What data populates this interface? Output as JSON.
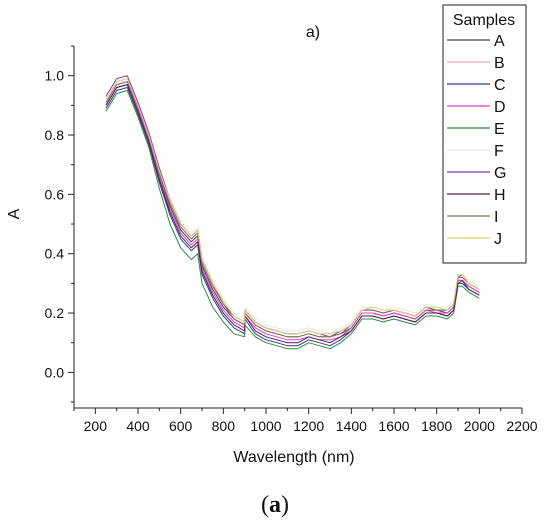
{
  "caption": {
    "open": "(",
    "letter": "a",
    "close": ")"
  },
  "chart_data": {
    "type": "line",
    "title": "a)",
    "xlabel": "Wavelength (nm)",
    "ylabel": "A",
    "xlim": [
      100,
      2200
    ],
    "ylim": [
      -0.12,
      1.1
    ],
    "xticks": [
      200,
      400,
      600,
      800,
      1000,
      1200,
      1400,
      1600,
      1800,
      2000,
      2200
    ],
    "yticks": [
      0.0,
      0.2,
      0.4,
      0.6,
      0.8,
      1.0
    ],
    "grid": false,
    "legend_position": "top-right",
    "legend_title": "Samples",
    "x": [
      250,
      300,
      350,
      400,
      450,
      500,
      550,
      600,
      650,
      680,
      700,
      750,
      800,
      850,
      900,
      901,
      950,
      1000,
      1050,
      1100,
      1150,
      1200,
      1250,
      1300,
      1350,
      1400,
      1450,
      1500,
      1550,
      1600,
      1650,
      1700,
      1750,
      1800,
      1850,
      1880,
      1900,
      1920,
      1950,
      2000
    ],
    "series": [
      {
        "name": "A",
        "color": "#444444",
        "values": [
          0.9,
          0.96,
          0.97,
          0.88,
          0.78,
          0.66,
          0.56,
          0.48,
          0.44,
          0.46,
          0.36,
          0.28,
          0.22,
          0.18,
          0.16,
          0.2,
          0.16,
          0.14,
          0.13,
          0.12,
          0.12,
          0.13,
          0.12,
          0.12,
          0.13,
          0.15,
          0.2,
          0.2,
          0.19,
          0.2,
          0.19,
          0.18,
          0.21,
          0.21,
          0.2,
          0.22,
          0.31,
          0.31,
          0.29,
          0.27
        ]
      },
      {
        "name": "B",
        "color": "#f2a8b6",
        "values": [
          0.92,
          0.98,
          0.99,
          0.9,
          0.8,
          0.68,
          0.58,
          0.5,
          0.46,
          0.48,
          0.38,
          0.3,
          0.24,
          0.19,
          0.17,
          0.21,
          0.17,
          0.15,
          0.14,
          0.13,
          0.13,
          0.14,
          0.13,
          0.12,
          0.14,
          0.16,
          0.21,
          0.21,
          0.2,
          0.21,
          0.2,
          0.19,
          0.22,
          0.21,
          0.21,
          0.23,
          0.32,
          0.32,
          0.3,
          0.28
        ]
      },
      {
        "name": "C",
        "color": "#2f3e8f",
        "values": [
          0.89,
          0.95,
          0.96,
          0.87,
          0.77,
          0.64,
          0.53,
          0.45,
          0.41,
          0.43,
          0.33,
          0.25,
          0.19,
          0.15,
          0.13,
          0.18,
          0.13,
          0.11,
          0.1,
          0.09,
          0.09,
          0.11,
          0.1,
          0.09,
          0.11,
          0.14,
          0.19,
          0.19,
          0.18,
          0.19,
          0.18,
          0.17,
          0.2,
          0.2,
          0.19,
          0.21,
          0.3,
          0.3,
          0.28,
          0.26
        ]
      },
      {
        "name": "D",
        "color": "#e040c8",
        "values": [
          0.91,
          0.97,
          0.98,
          0.89,
          0.79,
          0.66,
          0.55,
          0.47,
          0.43,
          0.45,
          0.35,
          0.27,
          0.21,
          0.17,
          0.15,
          0.19,
          0.15,
          0.13,
          0.12,
          0.11,
          0.11,
          0.12,
          0.11,
          0.11,
          0.12,
          0.15,
          0.2,
          0.2,
          0.19,
          0.2,
          0.19,
          0.18,
          0.21,
          0.2,
          0.2,
          0.22,
          0.31,
          0.31,
          0.29,
          0.27
        ]
      },
      {
        "name": "E",
        "color": "#2e8b3e",
        "values": [
          0.88,
          0.94,
          0.95,
          0.86,
          0.76,
          0.62,
          0.5,
          0.42,
          0.38,
          0.4,
          0.3,
          0.22,
          0.17,
          0.13,
          0.12,
          0.16,
          0.12,
          0.1,
          0.09,
          0.08,
          0.08,
          0.1,
          0.09,
          0.08,
          0.1,
          0.13,
          0.18,
          0.18,
          0.17,
          0.18,
          0.17,
          0.16,
          0.19,
          0.19,
          0.18,
          0.2,
          0.29,
          0.29,
          0.27,
          0.25
        ]
      },
      {
        "name": "F",
        "color": "#e6e6e6",
        "values": [
          0.92,
          0.98,
          0.99,
          0.91,
          0.81,
          0.69,
          0.59,
          0.51,
          0.47,
          0.49,
          0.39,
          0.31,
          0.25,
          0.2,
          0.18,
          0.22,
          0.18,
          0.16,
          0.15,
          0.14,
          0.14,
          0.15,
          0.14,
          0.13,
          0.15,
          0.17,
          0.22,
          0.22,
          0.21,
          0.22,
          0.21,
          0.2,
          0.23,
          0.22,
          0.22,
          0.24,
          0.33,
          0.33,
          0.31,
          0.29
        ]
      },
      {
        "name": "G",
        "color": "#7b3fb5",
        "values": [
          0.93,
          0.99,
          1.0,
          0.91,
          0.81,
          0.69,
          0.58,
          0.5,
          0.46,
          0.48,
          0.38,
          0.3,
          0.23,
          0.19,
          0.17,
          0.21,
          0.17,
          0.15,
          0.14,
          0.13,
          0.13,
          0.14,
          0.13,
          0.12,
          0.14,
          0.16,
          0.21,
          0.21,
          0.2,
          0.21,
          0.2,
          0.19,
          0.22,
          0.21,
          0.21,
          0.23,
          0.32,
          0.33,
          0.3,
          0.28
        ]
      },
      {
        "name": "H",
        "color": "#5a1a55",
        "values": [
          0.9,
          0.96,
          0.97,
          0.88,
          0.78,
          0.65,
          0.54,
          0.46,
          0.42,
          0.44,
          0.34,
          0.26,
          0.2,
          0.16,
          0.14,
          0.19,
          0.14,
          0.12,
          0.11,
          0.1,
          0.1,
          0.12,
          0.11,
          0.1,
          0.12,
          0.14,
          0.19,
          0.19,
          0.18,
          0.19,
          0.18,
          0.17,
          0.2,
          0.2,
          0.19,
          0.21,
          0.3,
          0.31,
          0.28,
          0.26
        ]
      },
      {
        "name": "I",
        "color": "#8a7060",
        "values": [
          0.91,
          0.97,
          0.98,
          0.9,
          0.8,
          0.67,
          0.57,
          0.49,
          0.45,
          0.47,
          0.37,
          0.29,
          0.23,
          0.18,
          0.16,
          0.2,
          0.16,
          0.14,
          0.13,
          0.12,
          0.12,
          0.13,
          0.12,
          0.12,
          0.13,
          0.16,
          0.21,
          0.21,
          0.2,
          0.21,
          0.2,
          0.19,
          0.22,
          0.21,
          0.21,
          0.23,
          0.32,
          0.32,
          0.3,
          0.28
        ]
      },
      {
        "name": "J",
        "color": "#d9d27a",
        "values": [
          0.92,
          0.98,
          0.99,
          0.9,
          0.8,
          0.68,
          0.58,
          0.5,
          0.46,
          0.48,
          0.38,
          0.3,
          0.24,
          0.19,
          0.17,
          0.21,
          0.17,
          0.15,
          0.14,
          0.13,
          0.13,
          0.14,
          0.13,
          0.13,
          0.14,
          0.16,
          0.21,
          0.22,
          0.21,
          0.21,
          0.2,
          0.19,
          0.22,
          0.22,
          0.21,
          0.23,
          0.33,
          0.33,
          0.3,
          0.28
        ]
      }
    ]
  }
}
